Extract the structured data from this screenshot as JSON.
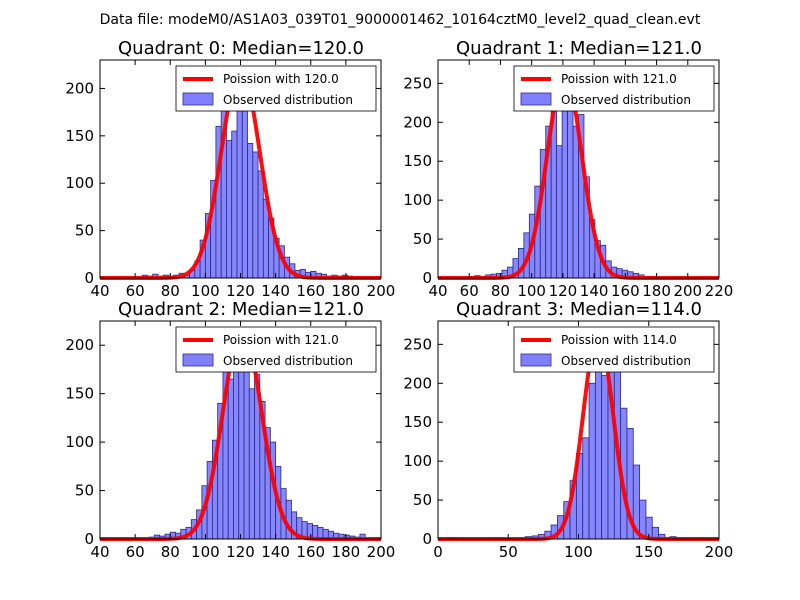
{
  "figure": {
    "suptitle": "Data file: modeM0/AS1A03_039T01_9000001462_10164cztM0_level2_quad_clean.evt"
  },
  "colors": {
    "poisson_line": "#ff0000",
    "hist_fill": "#8080ff",
    "hist_edge": "#2a2a80",
    "axes": "#000000"
  },
  "chart_data": [
    {
      "type": "bar",
      "title": "Quadrant 0: Median=120.0",
      "median": 120.0,
      "xlim": [
        40,
        200
      ],
      "ylim": [
        0,
        230
      ],
      "xticks": [
        40,
        60,
        80,
        100,
        120,
        140,
        160,
        180,
        200
      ],
      "yticks": [
        0,
        50,
        100,
        150,
        200
      ],
      "bin_width": 3,
      "series": [
        {
          "name": "Observed distribution",
          "kind": "histogram",
          "bin_starts": [
            64,
            67,
            70,
            73,
            76,
            79,
            82,
            85,
            88,
            91,
            94,
            97,
            100,
            103,
            106,
            109,
            112,
            115,
            118,
            121,
            124,
            127,
            130,
            133,
            136,
            139,
            142,
            145,
            148,
            151,
            154,
            157,
            160,
            163,
            166,
            169,
            172,
            175,
            178,
            181,
            184,
            187
          ],
          "values": [
            3,
            2,
            4,
            2,
            3,
            2,
            3,
            5,
            3,
            8,
            18,
            40,
            68,
            103,
            160,
            198,
            145,
            155,
            210,
            215,
            142,
            133,
            113,
            83,
            63,
            42,
            34,
            22,
            15,
            8,
            9,
            6,
            7,
            5,
            4,
            2,
            3,
            2,
            3,
            2,
            1,
            1
          ]
        },
        {
          "name": "Poission with 120.0",
          "kind": "line",
          "mean": 120.0,
          "peak": 220
        }
      ],
      "legend": [
        "Poission with 120.0",
        "Observed distribution"
      ],
      "legend_position": "top-right"
    },
    {
      "type": "bar",
      "title": "Quadrant 1: Median=121.0",
      "median": 121.0,
      "xlim": [
        40,
        220
      ],
      "ylim": [
        0,
        280
      ],
      "xticks": [
        40,
        60,
        80,
        100,
        120,
        140,
        160,
        180,
        200,
        220
      ],
      "yticks": [
        0,
        50,
        100,
        150,
        200,
        250
      ],
      "bin_width": 3.5,
      "series": [
        {
          "name": "Observed distribution",
          "kind": "histogram",
          "bin_starts": [
            60,
            63.5,
            67,
            70.5,
            74,
            77.5,
            81,
            84.5,
            88,
            91.5,
            95,
            98.5,
            102,
            105.5,
            109,
            112.5,
            116,
            119.5,
            123,
            126.5,
            130,
            133.5,
            137,
            140.5,
            144,
            147.5,
            151,
            154.5,
            158,
            161.5,
            165,
            168.5,
            172,
            175.5,
            179
          ],
          "values": [
            2,
            3,
            2,
            4,
            5,
            6,
            10,
            14,
            25,
            38,
            58,
            82,
            118,
            165,
            195,
            225,
            170,
            252,
            240,
            195,
            210,
            130,
            75,
            48,
            42,
            22,
            14,
            12,
            10,
            8,
            6,
            4,
            2,
            2,
            1
          ]
        },
        {
          "name": "Poission with 121.0",
          "kind": "line",
          "mean": 121.0,
          "peak": 263
        }
      ],
      "legend": [
        "Poission with 121.0",
        "Observed distribution"
      ],
      "legend_position": "top-right"
    },
    {
      "type": "bar",
      "title": "Quadrant 2: Median=121.0",
      "median": 121.0,
      "xlim": [
        40,
        200
      ],
      "ylim": [
        0,
        225
      ],
      "xticks": [
        40,
        60,
        80,
        100,
        120,
        140,
        160,
        180,
        200
      ],
      "yticks": [
        0,
        50,
        100,
        150,
        200
      ],
      "bin_width": 3,
      "series": [
        {
          "name": "Observed distribution",
          "kind": "histogram",
          "bin_starts": [
            68,
            71,
            74,
            77,
            80,
            83,
            86,
            89,
            92,
            95,
            98,
            101,
            104,
            107,
            110,
            113,
            116,
            119,
            122,
            125,
            128,
            131,
            134,
            137,
            140,
            143,
            146,
            149,
            152,
            155,
            158,
            161,
            164,
            167,
            170,
            173,
            176,
            179,
            182,
            185,
            188
          ],
          "values": [
            2,
            4,
            3,
            5,
            7,
            6,
            10,
            12,
            20,
            30,
            55,
            80,
            102,
            140,
            175,
            165,
            185,
            202,
            190,
            155,
            170,
            142,
            115,
            100,
            75,
            52,
            40,
            28,
            22,
            18,
            16,
            14,
            12,
            10,
            8,
            6,
            5,
            4,
            3,
            2,
            5
          ]
        },
        {
          "name": "Poission with 121.0",
          "kind": "line",
          "mean": 121.0,
          "peak": 217
        }
      ],
      "legend": [
        "Poission with 121.0",
        "Observed distribution"
      ],
      "legend_position": "top-right"
    },
    {
      "type": "bar",
      "title": "Quadrant 3: Median=114.0",
      "median": 114.0,
      "xlim": [
        0,
        200
      ],
      "ylim": [
        0,
        280
      ],
      "xticks": [
        0,
        50,
        100,
        150,
        200
      ],
      "yticks": [
        0,
        50,
        100,
        150,
        200,
        250
      ],
      "bin_width": 4.5,
      "series": [
        {
          "name": "Observed distribution",
          "kind": "histogram",
          "bin_starts": [
            9,
            40,
            62,
            67,
            71.5,
            76,
            80.5,
            85,
            89.5,
            94,
            98.5,
            103,
            107.5,
            112,
            116.5,
            121,
            125.5,
            130,
            134.5,
            139,
            143.5,
            148,
            152.5,
            157,
            165,
            174,
            187
          ],
          "values": [
            2,
            2,
            3,
            4,
            6,
            10,
            18,
            30,
            48,
            75,
            110,
            130,
            200,
            215,
            210,
            250,
            250,
            168,
            142,
            95,
            50,
            28,
            15,
            6,
            3,
            2,
            1
          ]
        },
        {
          "name": "Poission with 114.0",
          "kind": "line",
          "mean": 114.0,
          "peak": 264
        }
      ],
      "legend": [
        "Poission with 114.0",
        "Observed distribution"
      ],
      "legend_position": "top-right"
    }
  ]
}
